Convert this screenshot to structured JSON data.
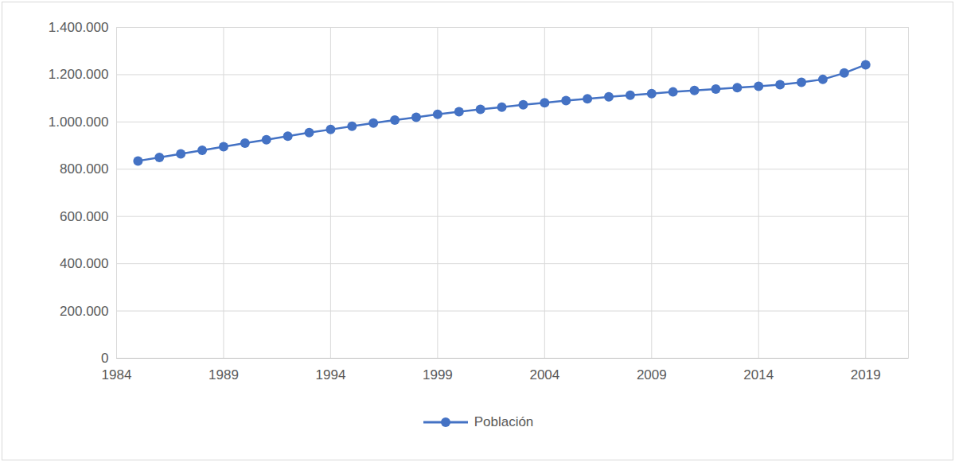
{
  "chart_data": {
    "type": "line",
    "x": [
      1985,
      1986,
      1987,
      1988,
      1989,
      1990,
      1991,
      1992,
      1993,
      1994,
      1995,
      1996,
      1997,
      1998,
      1999,
      2000,
      2001,
      2002,
      2003,
      2004,
      2005,
      2006,
      2007,
      2008,
      2009,
      2010,
      2011,
      2012,
      2013,
      2014,
      2015,
      2016,
      2017,
      2018,
      2019
    ],
    "series": [
      {
        "name": "Población",
        "color": "#4472c4",
        "marker": "circle",
        "values": [
          835000,
          850000,
          865000,
          880000,
          895000,
          910000,
          925000,
          940000,
          955000,
          968000,
          982000,
          995000,
          1008000,
          1020000,
          1032000,
          1043000,
          1053000,
          1063000,
          1073000,
          1081000,
          1090000,
          1098000,
          1106000,
          1113000,
          1120000,
          1127000,
          1133000,
          1139000,
          1145000,
          1151000,
          1158000,
          1168000,
          1180000,
          1207000,
          1242000
        ]
      }
    ],
    "xlim": [
      1984,
      2021
    ],
    "xticks": [
      1984,
      1989,
      1994,
      1999,
      2004,
      2009,
      2014,
      2019
    ],
    "ylim": [
      0,
      1400000
    ],
    "yticks": [
      0,
      {
        "value": 200000,
        "label": "200.000"
      },
      {
        "value": 400000,
        "label": "400.000"
      },
      {
        "value": 600000,
        "label": "600.000"
      },
      {
        "value": 800000,
        "label": "800.000"
      },
      {
        "value": 1000000,
        "label": "1.000.000"
      },
      {
        "value": 1200000,
        "label": "1.200.000"
      },
      {
        "value": 1400000,
        "label": "1.400.000"
      }
    ],
    "grid": true,
    "legend": "bottom"
  }
}
